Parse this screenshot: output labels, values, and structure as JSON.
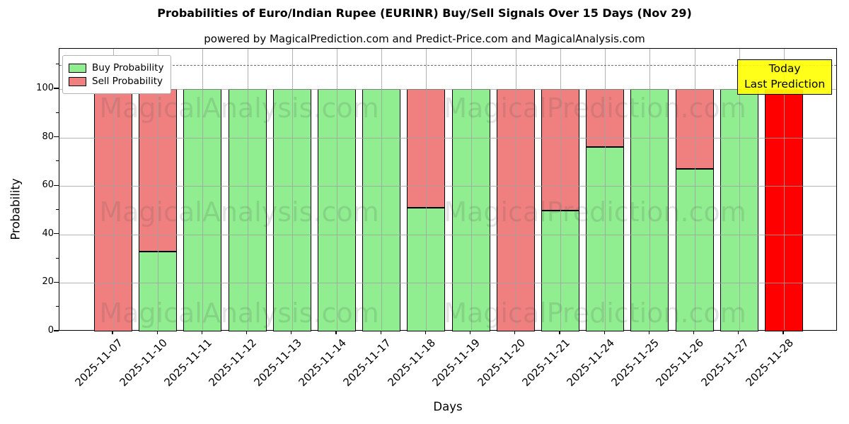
{
  "title": "Probabilities of Euro/Indian Rupee (EURINR) Buy/Sell Signals Over 15 Days (Nov 29)",
  "subtitle": "powered by MagicalPrediction.com and Predict-Price.com and MagicalAnalysis.com",
  "watermarks": {
    "left_text": "MagicalAnalysis.com",
    "right_text": "MagicalPrediction.com"
  },
  "legend": {
    "items": [
      {
        "label": "Buy Probability",
        "color": "#90ee90"
      },
      {
        "label": "Sell Probability",
        "color": "#f08080"
      }
    ]
  },
  "annotation": {
    "line1": "Today",
    "line2": "Last Prediction",
    "bg_color": "#ffff00"
  },
  "axes": {
    "ylabel": "Probability",
    "xlabel": "Days",
    "yticks": [
      0,
      20,
      40,
      60,
      80,
      100
    ],
    "yminor": [
      10,
      30,
      50,
      70,
      90,
      110
    ],
    "ymax": 116.6,
    "dashed_line_y": 110
  },
  "chart_data": {
    "type": "bar",
    "stacked": true,
    "title": "Probabilities of Euro/Indian Rupee (EURINR) Buy/Sell Signals Over 15 Days (Nov 29)",
    "xlabel": "Days",
    "ylabel": "Probability",
    "ylim": [
      0,
      116.6
    ],
    "grid": true,
    "legend_position": "upper left",
    "categories": [
      "2025-11-07",
      "2025-11-10",
      "2025-11-11",
      "2025-11-12",
      "2025-11-13",
      "2025-11-14",
      "2025-11-17",
      "2025-11-18",
      "2025-11-19",
      "2025-11-20",
      "2025-11-21",
      "2025-11-24",
      "2025-11-25",
      "2025-11-26",
      "2025-11-27",
      "2025-11-28"
    ],
    "series": [
      {
        "name": "Buy Probability",
        "color": "#90ee90",
        "values": [
          0,
          33,
          100,
          100,
          100,
          100,
          100,
          51,
          100,
          0,
          50,
          76,
          100,
          67,
          100,
          0
        ]
      },
      {
        "name": "Sell Probability",
        "color": "#f08080",
        "values": [
          100,
          67,
          0,
          0,
          0,
          0,
          0,
          49,
          0,
          100,
          50,
          24,
          0,
          33,
          0,
          100
        ]
      }
    ],
    "special_bars": [
      {
        "index": 15,
        "series": "Sell Probability",
        "color": "#ff0000",
        "note": "Today / Last Prediction"
      }
    ],
    "bar_edge_color": "#000000"
  }
}
